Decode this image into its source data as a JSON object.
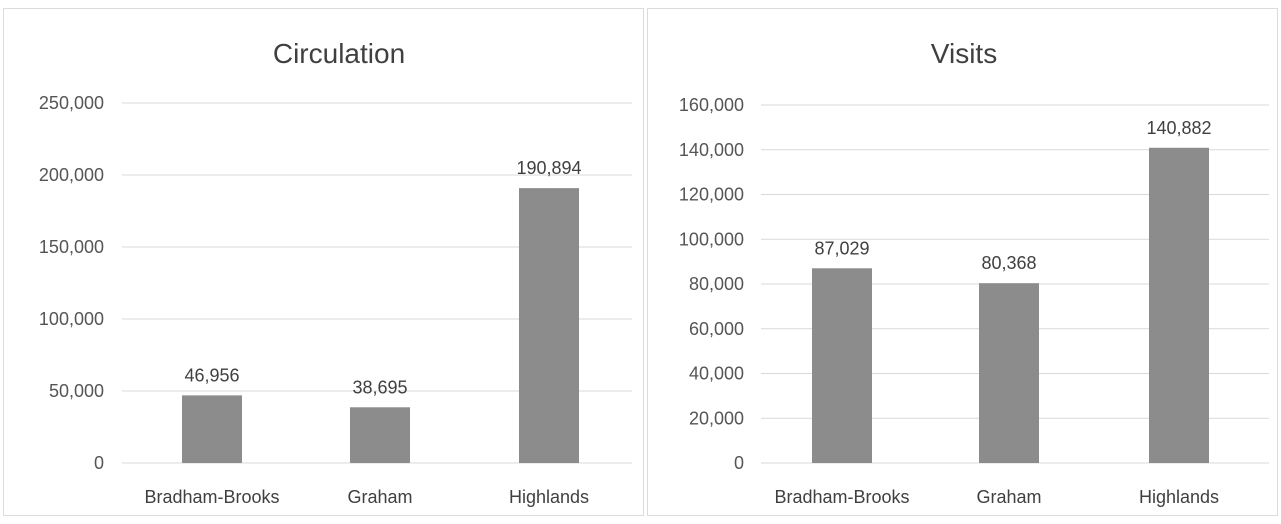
{
  "chart_data": [
    {
      "type": "bar",
      "title": "Circulation",
      "categories": [
        "Bradham-Brooks",
        "Graham",
        "Highlands"
      ],
      "values": [
        46956,
        38695,
        190894
      ],
      "value_labels": [
        "46,956",
        "38,695",
        "190,894"
      ],
      "ylim": [
        0,
        250000
      ],
      "yticks": [
        0,
        50000,
        100000,
        150000,
        200000,
        250000
      ],
      "ytick_labels": [
        "0",
        "50,000",
        "100,000",
        "150,000",
        "200,000",
        "250,000"
      ],
      "grid": true,
      "bar_color": "#8c8c8c"
    },
    {
      "type": "bar",
      "title": "Visits",
      "categories": [
        "Bradham-Brooks",
        "Graham",
        "Highlands"
      ],
      "values": [
        87029,
        80368,
        140882
      ],
      "value_labels": [
        "87,029",
        "80,368",
        "140,882"
      ],
      "ylim": [
        0,
        160000
      ],
      "yticks": [
        0,
        20000,
        40000,
        60000,
        80000,
        100000,
        120000,
        140000,
        160000
      ],
      "ytick_labels": [
        "0",
        "20,000",
        "40,000",
        "60,000",
        "80,000",
        "100,000",
        "120,000",
        "140,000",
        "160,000"
      ],
      "grid": true,
      "bar_color": "#8c8c8c"
    }
  ]
}
